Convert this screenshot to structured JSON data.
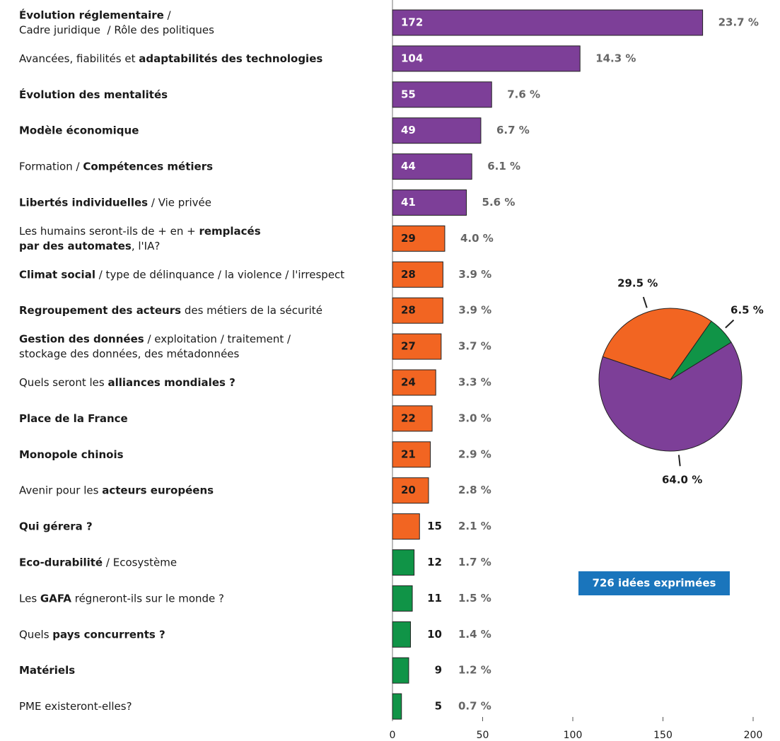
{
  "chart_data": {
    "type": "bar",
    "categories": [
      [
        [
          {
            "text": "Évolution réglementaire",
            "bold": true
          },
          {
            "text": " /"
          }
        ],
        [
          {
            "text": "Cadre juridique  / Rôle des politiques"
          }
        ]
      ],
      [
        [
          {
            "text": "Avancées, fiabilités et "
          },
          {
            "text": "adaptabilités des technologies",
            "bold": true
          }
        ]
      ],
      [
        [
          {
            "text": "Évolution des mentalités",
            "bold": true
          }
        ]
      ],
      [
        [
          {
            "text": "Modèle économique",
            "bold": true
          }
        ]
      ],
      [
        [
          {
            "text": "Formation / "
          },
          {
            "text": "Compétences métiers",
            "bold": true
          }
        ]
      ],
      [
        [
          {
            "text": "Libertés individuelles",
            "bold": true
          },
          {
            "text": " / Vie privée"
          }
        ]
      ],
      [
        [
          {
            "text": "Les humains seront-ils de + en + "
          },
          {
            "text": "remplacés",
            "bold": true
          }
        ],
        [
          {
            "text": "par des automates",
            "bold": true
          },
          {
            "text": ", l'IA?"
          }
        ]
      ],
      [
        [
          {
            "text": "Climat social",
            "bold": true
          },
          {
            "text": " / type de délinquance / la violence / l'irrespect"
          }
        ]
      ],
      [
        [
          {
            "text": "Regroupement des acteurs",
            "bold": true
          },
          {
            "text": " des métiers de la sécurité"
          }
        ]
      ],
      [
        [
          {
            "text": "Gestion des données",
            "bold": true
          },
          {
            "text": " / exploitation / traitement /"
          }
        ],
        [
          {
            "text": "stockage des données, des métadonnées"
          }
        ]
      ],
      [
        [
          {
            "text": "Quels seront les "
          },
          {
            "text": "alliances mondiales ?",
            "bold": true
          }
        ]
      ],
      [
        [
          {
            "text": "Place de la France",
            "bold": true
          }
        ]
      ],
      [
        [
          {
            "text": "Monopole chinois",
            "bold": true
          }
        ]
      ],
      [
        [
          {
            "text": "Avenir pour les "
          },
          {
            "text": "acteurs européens",
            "bold": true
          }
        ]
      ],
      [
        [
          {
            "text": "Qui gérera ?",
            "bold": true
          }
        ]
      ],
      [
        [
          {
            "text": "Eco-durabilité",
            "bold": true
          },
          {
            "text": " / Ecosystème"
          }
        ]
      ],
      [
        [
          {
            "text": "Les "
          },
          {
            "text": "GAFA",
            "bold": true
          },
          {
            "text": " régneront-ils sur le monde ?"
          }
        ]
      ],
      [
        [
          {
            "text": "Quels "
          },
          {
            "text": "pays concurrents ?",
            "bold": true
          }
        ]
      ],
      [
        [
          {
            "text": "Matériels",
            "bold": true
          }
        ]
      ],
      [
        [
          {
            "text": "PME existeront-elles?"
          }
        ]
      ]
    ],
    "values": [
      172,
      104,
      55,
      49,
      44,
      41,
      29,
      28,
      28,
      27,
      24,
      22,
      21,
      20,
      15,
      12,
      11,
      10,
      9,
      5
    ],
    "percent_labels": [
      "23.7 %",
      "14.3 %",
      "7.6 %",
      "6.7 %",
      "6.1 %",
      "5.6 %",
      "4.0 %",
      "3.9 %",
      "3.9 %",
      "3.7 %",
      "3.3 %",
      "3.0 %",
      "2.9 %",
      "2.8 %",
      "2.1 %",
      "1.7 %",
      "1.5 %",
      "1.4 %",
      "1.2 %",
      "0.7 %"
    ],
    "colors": [
      "#7d3f98",
      "#7d3f98",
      "#7d3f98",
      "#7d3f98",
      "#7d3f98",
      "#7d3f98",
      "#f26522",
      "#f26522",
      "#f26522",
      "#f26522",
      "#f26522",
      "#f26522",
      "#f26522",
      "#f26522",
      "#f26522",
      "#109447",
      "#109447",
      "#109447",
      "#109447",
      "#109447"
    ],
    "xlim": [
      0,
      200
    ],
    "xticks": [
      0,
      50,
      100,
      150,
      200
    ],
    "pie": {
      "type": "pie",
      "values": [
        64.0,
        29.5,
        6.5
      ],
      "value_labels": [
        "64.0 %",
        "29.5 %",
        "6.5 %"
      ],
      "colors": [
        "#7d3f98",
        "#f26522",
        "#109447"
      ]
    },
    "annotation": "726 idées exprimées"
  }
}
